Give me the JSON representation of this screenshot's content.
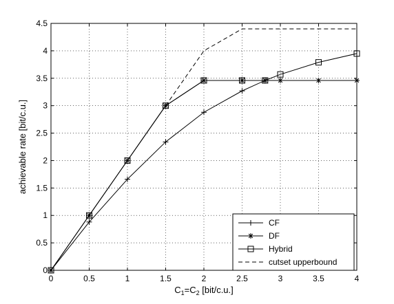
{
  "chart_data": {
    "type": "line",
    "title": "",
    "xlabel_parts": [
      "C",
      "1",
      "=C",
      "2",
      " [bit/c.u.]"
    ],
    "ylabel": "achievable rate [bit/c.u.]",
    "xlim": [
      0,
      4
    ],
    "ylim": [
      0,
      4.5
    ],
    "xticks": [
      0,
      0.5,
      1,
      1.5,
      2,
      2.5,
      3,
      3.5,
      4
    ],
    "yticks": [
      0,
      0.5,
      1,
      1.5,
      2,
      2.5,
      3,
      3.5,
      4,
      4.5
    ],
    "xtick_labels": [
      "0",
      "0.5",
      "1",
      "1.5",
      "2",
      "2.5",
      "3",
      "3.5",
      "4"
    ],
    "ytick_labels": [
      "0",
      "0.5",
      "1",
      "1.5",
      "2",
      "2.5",
      "3",
      "3.5",
      "4",
      "4.5"
    ],
    "grid": true,
    "legend_position": "bottom-right",
    "series": [
      {
        "name": "CF",
        "marker": "plus",
        "line": "solid",
        "points": [
          [
            0,
            0
          ],
          [
            0.5,
            0.88
          ],
          [
            1,
            1.66
          ],
          [
            1.5,
            2.34
          ],
          [
            2,
            2.88
          ],
          [
            2.5,
            3.27
          ],
          [
            2.8,
            3.46
          ]
        ]
      },
      {
        "name": "DF",
        "marker": "asterisk",
        "line": "solid",
        "points": [
          [
            0,
            0
          ],
          [
            0.5,
            1.0
          ],
          [
            1,
            2.0
          ],
          [
            1.5,
            3.0
          ],
          [
            2,
            3.46
          ],
          [
            2.5,
            3.46
          ],
          [
            2.8,
            3.46
          ],
          [
            3,
            3.46
          ],
          [
            3.5,
            3.46
          ],
          [
            4,
            3.46
          ]
        ]
      },
      {
        "name": "Hybrid",
        "marker": "square",
        "line": "solid",
        "points": [
          [
            0,
            0
          ],
          [
            0.5,
            1.0
          ],
          [
            1,
            2.0
          ],
          [
            1.5,
            3.0
          ],
          [
            2,
            3.46
          ],
          [
            2.5,
            3.46
          ],
          [
            2.8,
            3.46
          ],
          [
            3,
            3.57
          ],
          [
            3.5,
            3.79
          ],
          [
            4,
            3.95
          ]
        ]
      },
      {
        "name": "cutset upperbound",
        "marker": "none",
        "line": "dashed",
        "points": [
          [
            1.5,
            3.0
          ],
          [
            2,
            4.0
          ],
          [
            2.5,
            4.4
          ],
          [
            3,
            4.4
          ],
          [
            3.5,
            4.4
          ],
          [
            4,
            4.4
          ]
        ]
      }
    ]
  }
}
